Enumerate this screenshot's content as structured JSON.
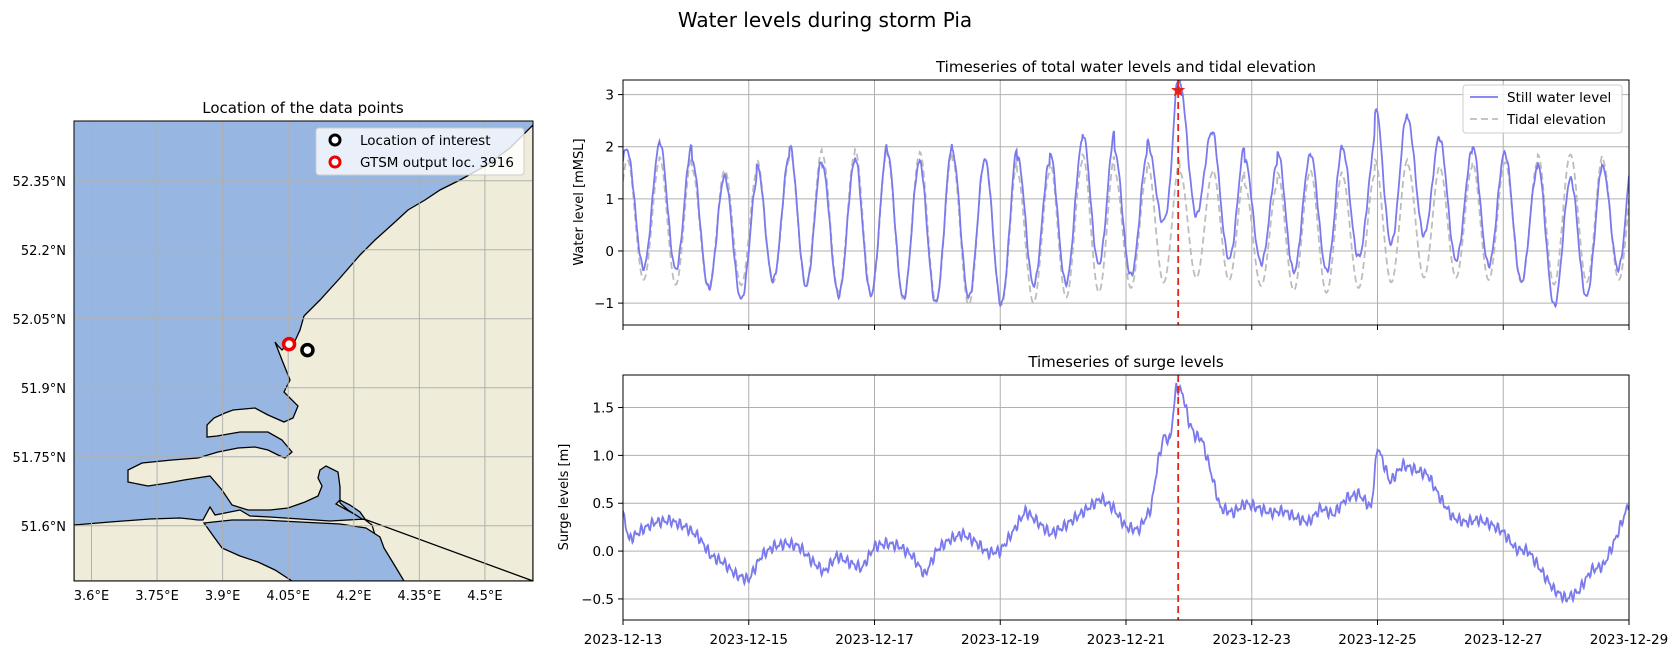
{
  "figure_title": "Water levels during storm Pia",
  "colors": {
    "sea": "#97b6e1",
    "land": "#efedda",
    "grid": "#b0b0b0",
    "swl": "#7a7aee",
    "tide": "#bdbdbd",
    "peak_line": "#e3241b",
    "peak_marker": "#e3241b"
  },
  "chart_data": [
    {
      "type": "map",
      "title": "Location of the data points",
      "xlim": [
        3.56,
        4.61
      ],
      "ylim": [
        51.48,
        52.48
      ],
      "xticks": [
        3.6,
        3.75,
        3.9,
        4.05,
        4.2,
        4.35,
        4.5
      ],
      "xtick_labels": [
        "3.6°E",
        "3.75°E",
        "3.9°E",
        "4.05°E",
        "4.2°E",
        "4.35°E",
        "4.5°E"
      ],
      "yticks": [
        51.6,
        51.75,
        51.9,
        52.05,
        52.2,
        52.35
      ],
      "ytick_labels": [
        "51.6°N",
        "51.75°N",
        "51.9°N",
        "52.05°N",
        "52.2°N",
        "52.35°N"
      ],
      "points": [
        {
          "name": "Location of interest",
          "lon": 4.094,
          "lat": 51.982,
          "color": "#000000"
        },
        {
          "name": "GTSM output loc. 3916",
          "lon": 4.052,
          "lat": 51.995,
          "color": "#ee0000"
        }
      ],
      "legend": [
        "Location of interest",
        "GTSM output loc. 3916"
      ],
      "legend_position": "top-right"
    },
    {
      "type": "line",
      "title": "Timeseries of total water levels and tidal elevation",
      "ylabel": "Water level [mMSL]",
      "xlim": [
        0,
        16
      ],
      "ylim": [
        -1.42,
        3.28
      ],
      "yticks": [
        -1,
        0,
        1,
        2,
        3
      ],
      "ytick_labels": [
        "−1",
        "0",
        "1",
        "2",
        "3"
      ],
      "peak": {
        "day": 8.83,
        "value": 3.08
      },
      "series": [
        {
          "name": "Still water level",
          "style": "solid",
          "day_start": 8.0,
          "day_end": 8.83,
          "tide_amplitude_base": 1.32,
          "tide_offset_base": 0.48,
          "note": "semi-diurnal signal = tidal elevation + surge"
        },
        {
          "name": "Tidal elevation",
          "style": "dashed",
          "period_days": 0.5175,
          "peak_days": [
            0.07,
            0.58,
            1.1,
            1.62,
            2.13,
            2.65,
            3.17,
            3.69,
            4.2,
            4.72,
            5.24,
            5.76,
            6.27,
            6.79,
            7.31,
            7.82,
            8.34,
            8.86,
            9.38,
            9.89,
            10.41,
            10.93,
            11.44,
            11.96,
            12.48,
            12.99,
            13.51,
            14.03,
            14.55,
            15.07,
            15.58
          ],
          "peak_values": [
            1.75,
            1.8,
            1.55,
            1.55,
            1.75,
            1.95,
            1.85,
            1.95,
            1.85,
            1.9,
            1.75,
            1.75,
            1.5,
            1.7,
            1.85,
            1.5,
            1.7,
            1.5,
            1.55,
            1.25,
            1.5,
            1.55,
            1.45,
            1.75,
            1.65,
            1.6,
            1.7,
            1.7,
            1.85,
            1.85,
            1.75
          ],
          "low_values": [
            -0.65,
            -0.75,
            -0.8,
            -0.75,
            -0.7,
            -0.75,
            -0.9,
            -0.95,
            -1.05,
            -1.1,
            -1.15,
            -1.15,
            -1.1,
            -1.0,
            -0.9,
            -0.8,
            -0.7,
            -0.6,
            -0.65,
            -0.75,
            -0.85,
            -0.9,
            -0.8,
            -0.7,
            -0.6,
            -0.6,
            -0.65,
            -0.7,
            -0.75,
            -0.7,
            -0.65
          ]
        }
      ],
      "legend": [
        "Still water level",
        "Tidal elevation"
      ],
      "legend_position": "top-right"
    },
    {
      "type": "line",
      "title": "Timeseries of surge levels",
      "ylabel": "Surge levels [m]",
      "xlim": [
        0,
        16
      ],
      "ylim": [
        -0.72,
        1.84
      ],
      "yticks": [
        -0.5,
        0.0,
        0.5,
        1.0,
        1.5
      ],
      "ytick_labels": [
        "−0.5",
        "0.0",
        "0.5",
        "1.0",
        "1.5"
      ],
      "xtick_days": [
        0,
        2,
        4,
        6,
        8,
        10,
        12,
        14,
        16
      ],
      "xtick_labels": [
        "2023-12-13",
        "2023-12-15",
        "2023-12-17",
        "2023-12-19",
        "2023-12-21",
        "2023-12-23",
        "2023-12-25",
        "2023-12-27",
        "2023-12-29"
      ],
      "peak_day": 8.83,
      "series": [
        {
          "name": "Surge level",
          "x_days": [
            0,
            0.1,
            0.3,
            0.5,
            0.75,
            1.0,
            1.2,
            1.4,
            1.6,
            1.8,
            2.0,
            2.2,
            2.4,
            2.6,
            2.8,
            3.0,
            3.2,
            3.4,
            3.6,
            3.8,
            4.0,
            4.2,
            4.4,
            4.6,
            4.8,
            5.0,
            5.2,
            5.4,
            5.6,
            5.8,
            6.0,
            6.2,
            6.4,
            6.6,
            6.8,
            7.0,
            7.2,
            7.4,
            7.6,
            7.8,
            8.0,
            8.2,
            8.4,
            8.5,
            8.6,
            8.7,
            8.8,
            8.9,
            9.0,
            9.1,
            9.2,
            9.3,
            9.5,
            9.7,
            9.9,
            10.1,
            10.3,
            10.5,
            10.7,
            10.9,
            11.1,
            11.3,
            11.5,
            11.7,
            11.9,
            12.0,
            12.2,
            12.4,
            12.6,
            12.8,
            13.0,
            13.2,
            13.4,
            13.6,
            13.8,
            14.0,
            14.2,
            14.4,
            14.6,
            14.8,
            15.0,
            15.2,
            15.4,
            15.6,
            15.8,
            16.0
          ],
          "values": [
            0.38,
            0.12,
            0.22,
            0.3,
            0.32,
            0.25,
            0.15,
            -0.05,
            -0.12,
            -0.25,
            -0.3,
            -0.05,
            0.05,
            0.08,
            0.05,
            -0.1,
            -0.22,
            -0.05,
            -0.12,
            -0.18,
            0.05,
            0.08,
            0.05,
            -0.05,
            -0.25,
            0.02,
            0.12,
            0.18,
            0.1,
            -0.02,
            0.0,
            0.2,
            0.42,
            0.3,
            0.18,
            0.25,
            0.35,
            0.45,
            0.55,
            0.45,
            0.25,
            0.22,
            0.45,
            0.9,
            1.2,
            1.15,
            1.72,
            1.65,
            1.35,
            1.2,
            1.18,
            0.95,
            0.45,
            0.4,
            0.5,
            0.45,
            0.4,
            0.42,
            0.35,
            0.3,
            0.45,
            0.38,
            0.55,
            0.6,
            0.45,
            1.1,
            0.72,
            0.9,
            0.85,
            0.8,
            0.55,
            0.35,
            0.3,
            0.33,
            0.28,
            0.2,
            0.02,
            0.0,
            -0.2,
            -0.4,
            -0.5,
            -0.42,
            -0.2,
            -0.15,
            0.15,
            0.5
          ]
        }
      ]
    }
  ]
}
